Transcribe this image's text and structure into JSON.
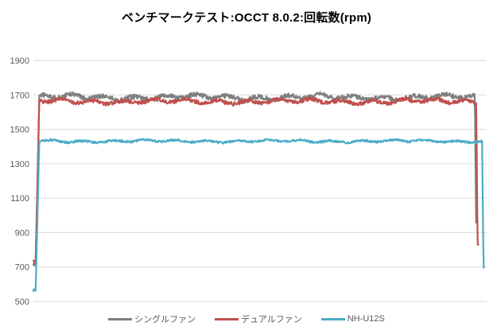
{
  "chart_data": {
    "type": "line",
    "title": "ベンチマークテスト:OCCT 8.0.2:回転数(rpm)",
    "ylim": [
      500,
      1900
    ],
    "yticks": [
      1900,
      1700,
      1500,
      1300,
      1100,
      900,
      700,
      500
    ],
    "grid": "horizontal",
    "legend_position": "bottom-center",
    "x_axis_ticks_visible": false,
    "series": [
      {
        "name": "シングルファン",
        "color": "#7f7f7f",
        "start_value": 715,
        "rise_start_pct": 0.5,
        "rise_end_pct": 1.3,
        "steady_value": 1686,
        "noise_rpm": 24,
        "drop_start_pct": 97.4,
        "end_value": 905,
        "end_pct": 97.8
      },
      {
        "name": "デュアルファン",
        "color": "#c0504d",
        "start_value": 725,
        "rise_start_pct": 0.5,
        "rise_end_pct": 1.3,
        "steady_value": 1662,
        "noise_rpm": 20,
        "drop_start_pct": 97.7,
        "end_value": 830,
        "end_pct": 98.2
      },
      {
        "name": "NH-U12S",
        "color": "#4bacc6",
        "start_value": 565,
        "rise_start_pct": 0.5,
        "rise_end_pct": 1.3,
        "steady_value": 1431,
        "noise_rpm": 11,
        "drop_start_pct": 99.0,
        "end_value": 695,
        "end_pct": 99.4
      }
    ]
  },
  "colors": {
    "gridline": "#d9d9d9",
    "tick_text": "#595959",
    "legend_text": "#595959",
    "title_text": "#000000",
    "background": "#ffffff"
  }
}
